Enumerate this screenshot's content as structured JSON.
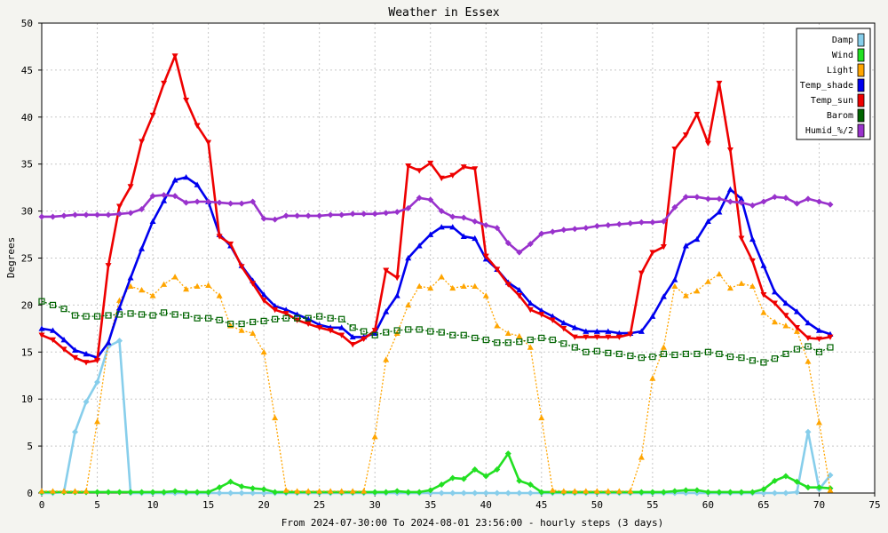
{
  "chart_data": {
    "type": "line",
    "title": "Weather in Essex",
    "xlabel": "From 2024-07-30:00 To 2024-08-01 23:56:00 - hourly steps (3 days)",
    "ylabel": "Degrees",
    "xlim": [
      0,
      75
    ],
    "ylim": [
      0,
      50
    ],
    "xticks": [
      0,
      5,
      10,
      15,
      20,
      25,
      30,
      35,
      40,
      45,
      50,
      55,
      60,
      65,
      70,
      75
    ],
    "yticks": [
      0,
      5,
      10,
      15,
      20,
      25,
      30,
      35,
      40,
      45,
      50
    ],
    "grid": true,
    "legend_position": "top-right",
    "series": [
      {
        "name": "Damp",
        "color": "#87ceeb",
        "marker": "diamond",
        "dotted": false,
        "x": [
          0,
          1,
          2,
          3,
          4,
          5,
          6,
          7,
          8,
          9,
          10,
          11,
          12,
          13,
          14,
          15,
          16,
          17,
          18,
          19,
          20,
          21,
          22,
          23,
          24,
          25,
          26,
          27,
          28,
          29,
          30,
          31,
          32,
          33,
          34,
          35,
          36,
          37,
          38,
          39,
          40,
          41,
          42,
          43,
          44,
          45,
          46,
          47,
          48,
          49,
          50,
          51,
          52,
          53,
          54,
          55,
          56,
          57,
          58,
          59,
          60,
          61,
          62,
          63,
          64,
          65,
          66,
          67,
          68,
          69,
          70,
          71
        ],
        "values": [
          0,
          0,
          0.1,
          6.5,
          9.7,
          11.8,
          15.6,
          16.2,
          0,
          0,
          0,
          0,
          0,
          0,
          0,
          0,
          0,
          0,
          0,
          0,
          0,
          0,
          0,
          0,
          0,
          0,
          0,
          0,
          0,
          0,
          0,
          0,
          0,
          0,
          0,
          0,
          0,
          0,
          0,
          0,
          0,
          0,
          0,
          0,
          0,
          0,
          0,
          0,
          0,
          0,
          0,
          0,
          0,
          0,
          0,
          0,
          0,
          0,
          0,
          0,
          0,
          0,
          0,
          0,
          0,
          0,
          0,
          0,
          0.1,
          6.5,
          0.4,
          1.9
        ]
      },
      {
        "name": "Wind",
        "color": "#22e022",
        "marker": "diamond",
        "dotted": false,
        "x": [
          0,
          1,
          2,
          3,
          4,
          5,
          6,
          7,
          8,
          9,
          10,
          11,
          12,
          13,
          14,
          15,
          16,
          17,
          18,
          19,
          20,
          21,
          22,
          23,
          24,
          25,
          26,
          27,
          28,
          29,
          30,
          31,
          32,
          33,
          34,
          35,
          36,
          37,
          38,
          39,
          40,
          41,
          42,
          43,
          44,
          45,
          46,
          47,
          48,
          49,
          50,
          51,
          52,
          53,
          54,
          55,
          56,
          57,
          58,
          59,
          60,
          61,
          62,
          63,
          64,
          65,
          66,
          67,
          68,
          69,
          70,
          71
        ],
        "values": [
          0.1,
          0.1,
          0.1,
          0.1,
          0.1,
          0.1,
          0.1,
          0.1,
          0.1,
          0.1,
          0.1,
          0.1,
          0.2,
          0.1,
          0.1,
          0.1,
          0.6,
          1.2,
          0.7,
          0.5,
          0.4,
          0.1,
          0.1,
          0.1,
          0.1,
          0.1,
          0.1,
          0.1,
          0.1,
          0.1,
          0.1,
          0.1,
          0.2,
          0.1,
          0.1,
          0.3,
          0.9,
          1.6,
          1.5,
          2.5,
          1.8,
          2.5,
          4.2,
          1.3,
          0.9,
          0.1,
          0.1,
          0.1,
          0.1,
          0.1,
          0.1,
          0.1,
          0.1,
          0.1,
          0.1,
          0.1,
          0.1,
          0.2,
          0.3,
          0.3,
          0.1,
          0.1,
          0.1,
          0.1,
          0.1,
          0.4,
          1.3,
          1.8,
          1.2,
          0.6,
          0.6,
          0.5
        ]
      },
      {
        "name": "Light",
        "color": "#ffa500",
        "marker": "triangle",
        "dotted": true,
        "x": [
          0,
          1,
          2,
          3,
          4,
          5,
          6,
          7,
          8,
          9,
          10,
          11,
          12,
          13,
          14,
          15,
          16,
          17,
          18,
          19,
          20,
          21,
          22,
          23,
          24,
          25,
          26,
          27,
          28,
          29,
          30,
          31,
          32,
          33,
          34,
          35,
          36,
          37,
          38,
          39,
          40,
          41,
          42,
          43,
          44,
          45,
          46,
          47,
          48,
          49,
          50,
          51,
          52,
          53,
          54,
          55,
          56,
          57,
          58,
          59,
          60,
          61,
          62,
          63,
          64,
          65,
          66,
          67,
          68,
          69,
          70,
          71
        ],
        "values": [
          0.2,
          0.2,
          0.2,
          0.2,
          0.2,
          7.6,
          16.0,
          20.5,
          22.0,
          21.6,
          21.0,
          22.2,
          23.0,
          21.7,
          22.0,
          22.1,
          21.0,
          17.8,
          17.3,
          17.0,
          15.0,
          8.0,
          0.3,
          0.2,
          0.2,
          0.2,
          0.2,
          0.2,
          0.2,
          0.2,
          6.0,
          14.2,
          17.0,
          20.0,
          22.0,
          21.8,
          23.0,
          21.8,
          22.0,
          22.0,
          21.0,
          17.8,
          17.0,
          16.7,
          15.5,
          8.0,
          0.3,
          0.2,
          0.2,
          0.2,
          0.2,
          0.2,
          0.2,
          0.2,
          3.8,
          12.2,
          15.5,
          22.0,
          21.0,
          21.5,
          22.5,
          23.3,
          21.8,
          22.3,
          22.0,
          19.2,
          18.2,
          17.8,
          17.2,
          14.0,
          7.5,
          0.3
        ]
      },
      {
        "name": "Temp_shade",
        "color": "#0000ee",
        "marker": "triangle",
        "dotted": false,
        "x": [
          0,
          1,
          2,
          3,
          4,
          5,
          6,
          7,
          8,
          9,
          10,
          11,
          12,
          13,
          14,
          15,
          16,
          17,
          18,
          19,
          20,
          21,
          22,
          23,
          24,
          25,
          26,
          27,
          28,
          29,
          30,
          31,
          32,
          33,
          34,
          35,
          36,
          37,
          38,
          39,
          40,
          41,
          42,
          43,
          44,
          45,
          46,
          47,
          48,
          49,
          50,
          51,
          52,
          53,
          54,
          55,
          56,
          57,
          58,
          59,
          60,
          61,
          62,
          63,
          64,
          65,
          66,
          67,
          68,
          69,
          70,
          71
        ],
        "values": [
          17.5,
          17.3,
          16.3,
          15.2,
          14.8,
          14.4,
          16.0,
          19.7,
          22.9,
          26.0,
          28.9,
          31.1,
          33.3,
          33.6,
          32.8,
          31.0,
          27.5,
          26.3,
          24.2,
          22.6,
          21.1,
          19.9,
          19.5,
          19.0,
          18.5,
          17.9,
          17.6,
          17.6,
          16.6,
          16.6,
          17.0,
          19.3,
          21.0,
          25.0,
          26.3,
          27.5,
          28.3,
          28.3,
          27.3,
          27.1,
          24.9,
          23.8,
          22.4,
          21.6,
          20.2,
          19.4,
          18.8,
          18.1,
          17.6,
          17.2,
          17.2,
          17.2,
          17.0,
          17.0,
          17.2,
          18.8,
          20.9,
          22.7,
          26.3,
          27.0,
          28.9,
          29.9,
          32.3,
          31.3,
          27.0,
          24.2,
          21.4,
          20.2,
          19.3,
          18.1,
          17.3,
          16.9
        ]
      },
      {
        "name": "Temp_sun",
        "color": "#ee0000",
        "marker": "triangle-down",
        "dotted": false,
        "x": [
          0,
          1,
          2,
          3,
          4,
          5,
          6,
          7,
          8,
          9,
          10,
          11,
          12,
          13,
          14,
          15,
          16,
          17,
          18,
          19,
          20,
          21,
          22,
          23,
          24,
          25,
          26,
          27,
          28,
          29,
          30,
          31,
          32,
          33,
          34,
          35,
          36,
          37,
          38,
          39,
          40,
          41,
          42,
          43,
          44,
          45,
          46,
          47,
          48,
          49,
          50,
          51,
          52,
          53,
          54,
          55,
          56,
          57,
          58,
          59,
          60,
          61,
          62,
          63,
          64,
          65,
          66,
          67,
          68,
          69,
          70,
          71
        ],
        "values": [
          16.8,
          16.3,
          15.3,
          14.4,
          13.9,
          14.1,
          24.2,
          30.5,
          32.6,
          37.4,
          40.2,
          43.6,
          46.5,
          41.8,
          39.1,
          37.3,
          27.3,
          26.5,
          24.1,
          22.3,
          20.5,
          19.5,
          19.1,
          18.4,
          18.0,
          17.6,
          17.3,
          16.8,
          15.8,
          16.4,
          17.3,
          23.7,
          22.9,
          34.8,
          34.3,
          35.1,
          33.5,
          33.8,
          34.7,
          34.5,
          25.2,
          23.8,
          22.2,
          21.0,
          19.5,
          19.0,
          18.4,
          17.5,
          16.6,
          16.6,
          16.6,
          16.6,
          16.6,
          16.9,
          23.4,
          25.6,
          26.2,
          36.6,
          38.1,
          40.3,
          37.2,
          43.6,
          36.5,
          27.1,
          24.7,
          21.1,
          20.2,
          18.9,
          17.6,
          16.5,
          16.4,
          16.6
        ]
      },
      {
        "name": "Barom",
        "color": "#006400",
        "marker": "square",
        "dotted": true,
        "x": [
          0,
          1,
          2,
          3,
          4,
          5,
          6,
          7,
          8,
          9,
          10,
          11,
          12,
          13,
          14,
          15,
          16,
          17,
          18,
          19,
          20,
          21,
          22,
          23,
          24,
          25,
          26,
          27,
          28,
          29,
          30,
          31,
          32,
          33,
          34,
          35,
          36,
          37,
          38,
          39,
          40,
          41,
          42,
          43,
          44,
          45,
          46,
          47,
          48,
          49,
          50,
          51,
          52,
          53,
          54,
          55,
          56,
          57,
          58,
          59,
          60,
          61,
          62,
          63,
          64,
          65,
          66,
          67,
          68,
          69,
          70,
          71
        ],
        "values": [
          20.4,
          20.0,
          19.6,
          18.9,
          18.8,
          18.8,
          18.9,
          19.0,
          19.1,
          19.0,
          18.9,
          19.2,
          19.0,
          18.9,
          18.6,
          18.6,
          18.4,
          18.0,
          18.0,
          18.2,
          18.3,
          18.5,
          18.6,
          18.6,
          18.6,
          18.8,
          18.6,
          18.5,
          17.6,
          17.2,
          16.8,
          17.1,
          17.3,
          17.4,
          17.4,
          17.2,
          17.1,
          16.8,
          16.8,
          16.5,
          16.3,
          16.0,
          16.0,
          16.1,
          16.3,
          16.5,
          16.3,
          15.9,
          15.5,
          15.0,
          15.1,
          14.9,
          14.8,
          14.6,
          14.4,
          14.5,
          14.8,
          14.7,
          14.8,
          14.8,
          15.0,
          14.8,
          14.5,
          14.4,
          14.1,
          13.9,
          14.3,
          14.8,
          15.3,
          15.6,
          15.0,
          15.5
        ]
      },
      {
        "name": "Humid_%/2",
        "color": "#9932cc",
        "marker": "diamond",
        "dotted": false,
        "x": [
          0,
          1,
          2,
          3,
          4,
          5,
          6,
          7,
          8,
          9,
          10,
          11,
          12,
          13,
          14,
          15,
          16,
          17,
          18,
          19,
          20,
          21,
          22,
          23,
          24,
          25,
          26,
          27,
          28,
          29,
          30,
          31,
          32,
          33,
          34,
          35,
          36,
          37,
          38,
          39,
          40,
          41,
          42,
          43,
          44,
          45,
          46,
          47,
          48,
          49,
          50,
          51,
          52,
          53,
          54,
          55,
          56,
          57,
          58,
          59,
          60,
          61,
          62,
          63,
          64,
          65,
          66,
          67,
          68,
          69,
          70,
          71
        ],
        "values": [
          29.4,
          29.4,
          29.5,
          29.6,
          29.6,
          29.6,
          29.6,
          29.7,
          29.8,
          30.2,
          31.6,
          31.7,
          31.6,
          30.9,
          31.0,
          31.0,
          30.9,
          30.8,
          30.8,
          31.0,
          29.2,
          29.1,
          29.5,
          29.5,
          29.5,
          29.5,
          29.6,
          29.6,
          29.7,
          29.7,
          29.7,
          29.8,
          29.9,
          30.3,
          31.4,
          31.2,
          30.0,
          29.4,
          29.3,
          28.9,
          28.5,
          28.2,
          26.6,
          25.6,
          26.5,
          27.6,
          27.8,
          28.0,
          28.1,
          28.2,
          28.4,
          28.5,
          28.6,
          28.7,
          28.8,
          28.8,
          28.9,
          30.4,
          31.5,
          31.5,
          31.3,
          31.3,
          31.0,
          30.9,
          30.6,
          31.0,
          31.5,
          31.4,
          30.8,
          31.3,
          31.0,
          30.7
        ]
      }
    ]
  }
}
